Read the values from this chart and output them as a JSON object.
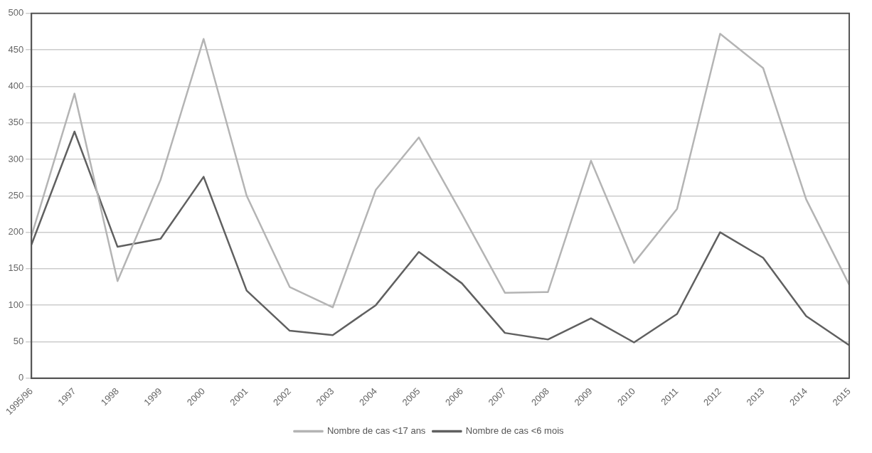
{
  "chart_data": {
    "type": "line",
    "categories": [
      "1995/96",
      "1997",
      "1998",
      "1999",
      "2000",
      "2001",
      "2002",
      "2003",
      "2004",
      "2005",
      "2006",
      "2007",
      "2008",
      "2009",
      "2010",
      "2011",
      "2012",
      "2013",
      "2014",
      "2015"
    ],
    "series": [
      {
        "name": "Nombre de cas <17 ans",
        "color": "#b4b4b4",
        "values": [
          195,
          390,
          133,
          272,
          465,
          250,
          125,
          97,
          258,
          330,
          225,
          117,
          118,
          298,
          158,
          232,
          472,
          425,
          245,
          128
        ]
      },
      {
        "name": "Nombre de cas <6 mois",
        "color": "#606060",
        "values": [
          183,
          338,
          180,
          191,
          276,
          120,
          65,
          59,
          100,
          173,
          130,
          62,
          53,
          82,
          49,
          88,
          200,
          165,
          85,
          45
        ]
      }
    ],
    "ylim": [
      0,
      500
    ],
    "yticks": [
      0,
      50,
      100,
      150,
      200,
      250,
      300,
      350,
      400,
      450,
      500
    ],
    "grid": "y",
    "legend": "bottom",
    "marker": "none",
    "line_style": "solid"
  }
}
